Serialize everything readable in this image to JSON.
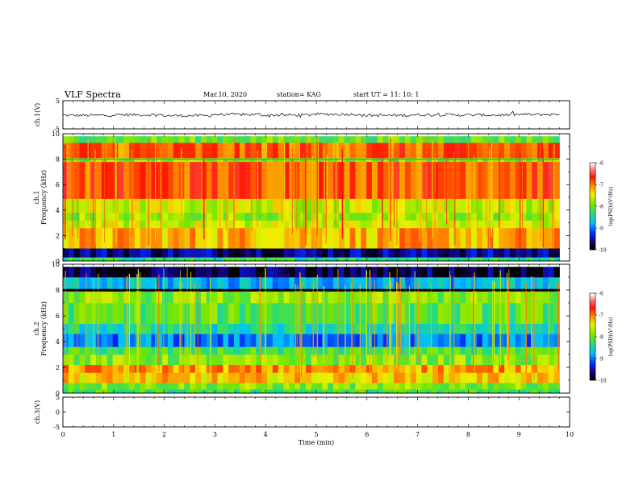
{
  "header": {
    "title": "VLF Spectra",
    "date": "Mar.10, 2020",
    "station": "station= KAG",
    "start": "start  UT =   11: 10: 1"
  },
  "chart_data": [
    {
      "type": "line",
      "panel": "ch1-waveform",
      "ylabel": "ch.1(V)",
      "ylim": [
        -5,
        5
      ],
      "yticks": [
        "5",
        "-5"
      ],
      "xlim": [
        0,
        10
      ],
      "series": [
        {
          "values": [
            -0.2,
            0.0,
            -0.3,
            0.1,
            -0.1,
            0.2,
            -0.2,
            0.0,
            -0.1,
            0.1
          ]
        }
      ]
    },
    {
      "type": "heatmap",
      "panel": "ch1-spectrogram",
      "ylabel": "ch.1\nFrequency (kHz)",
      "ylim": [
        0,
        10
      ],
      "yticks": [
        "0",
        "2",
        "4",
        "6",
        "8",
        "10"
      ],
      "xlim": [
        0,
        10
      ],
      "colorbar": {
        "label": "log(PSD)(V²/Hz)",
        "ticks": [
          "-6",
          "-7",
          "-8",
          "-9",
          "-10"
        ],
        "range": [
          -10,
          -6
        ]
      },
      "bands": [
        {
          "from": 0.0,
          "to": 0.3,
          "level": -8.3
        },
        {
          "from": 0.3,
          "to": 1.0,
          "level": -9.6
        },
        {
          "from": 1.0,
          "to": 2.6,
          "level": -7.2
        },
        {
          "from": 2.6,
          "to": 3.2,
          "level": -7.6
        },
        {
          "from": 3.2,
          "to": 3.8,
          "level": -7.8
        },
        {
          "from": 3.8,
          "to": 4.9,
          "level": -7.6
        },
        {
          "from": 4.9,
          "to": 7.8,
          "level": -6.8
        },
        {
          "from": 7.8,
          "to": 8.1,
          "level": -7.9
        },
        {
          "from": 8.1,
          "to": 9.3,
          "level": -6.9
        },
        {
          "from": 9.3,
          "to": 9.8,
          "level": -8.0
        }
      ]
    },
    {
      "type": "heatmap",
      "panel": "ch2-spectrogram",
      "ylabel": "ch.2\nFrequency (kHz)",
      "ylim": [
        0,
        10
      ],
      "yticks": [
        "0",
        "2",
        "4",
        "6",
        "8",
        "10"
      ],
      "xlim": [
        0,
        10
      ],
      "colorbar": {
        "label": "log(PSD)(V²/Hz)",
        "ticks": [
          "-6",
          "-7",
          "-8",
          "-9",
          "-10"
        ],
        "range": [
          -10,
          -6
        ]
      },
      "bands": [
        {
          "from": 0.0,
          "to": 0.3,
          "level": -8.2
        },
        {
          "from": 0.3,
          "to": 0.8,
          "level": -7.9
        },
        {
          "from": 0.8,
          "to": 1.6,
          "level": -7.3
        },
        {
          "from": 1.6,
          "to": 2.2,
          "level": -7.1
        },
        {
          "from": 2.2,
          "to": 3.0,
          "level": -7.9
        },
        {
          "from": 3.0,
          "to": 3.6,
          "level": -8.2
        },
        {
          "from": 3.6,
          "to": 4.6,
          "level": -9.0
        },
        {
          "from": 4.6,
          "to": 5.4,
          "level": -8.5
        },
        {
          "from": 5.4,
          "to": 7.0,
          "level": -8.1
        },
        {
          "from": 7.0,
          "to": 7.9,
          "level": -7.9
        },
        {
          "from": 7.9,
          "to": 8.1,
          "level": -10.0
        },
        {
          "from": 8.1,
          "to": 9.0,
          "level": -8.8
        },
        {
          "from": 9.0,
          "to": 9.8,
          "level": -9.8
        }
      ]
    },
    {
      "type": "line",
      "panel": "ch3-waveform",
      "ylabel": "ch.3(V)",
      "ylim": [
        -5,
        5
      ],
      "yticks": [
        "5",
        "0",
        "-5"
      ],
      "xlim": [
        0,
        10
      ],
      "xlabel": "Time (min)",
      "xticks": [
        "0",
        "1",
        "2",
        "3",
        "4",
        "5",
        "6",
        "7",
        "8",
        "9",
        "10"
      ],
      "series": []
    }
  ]
}
